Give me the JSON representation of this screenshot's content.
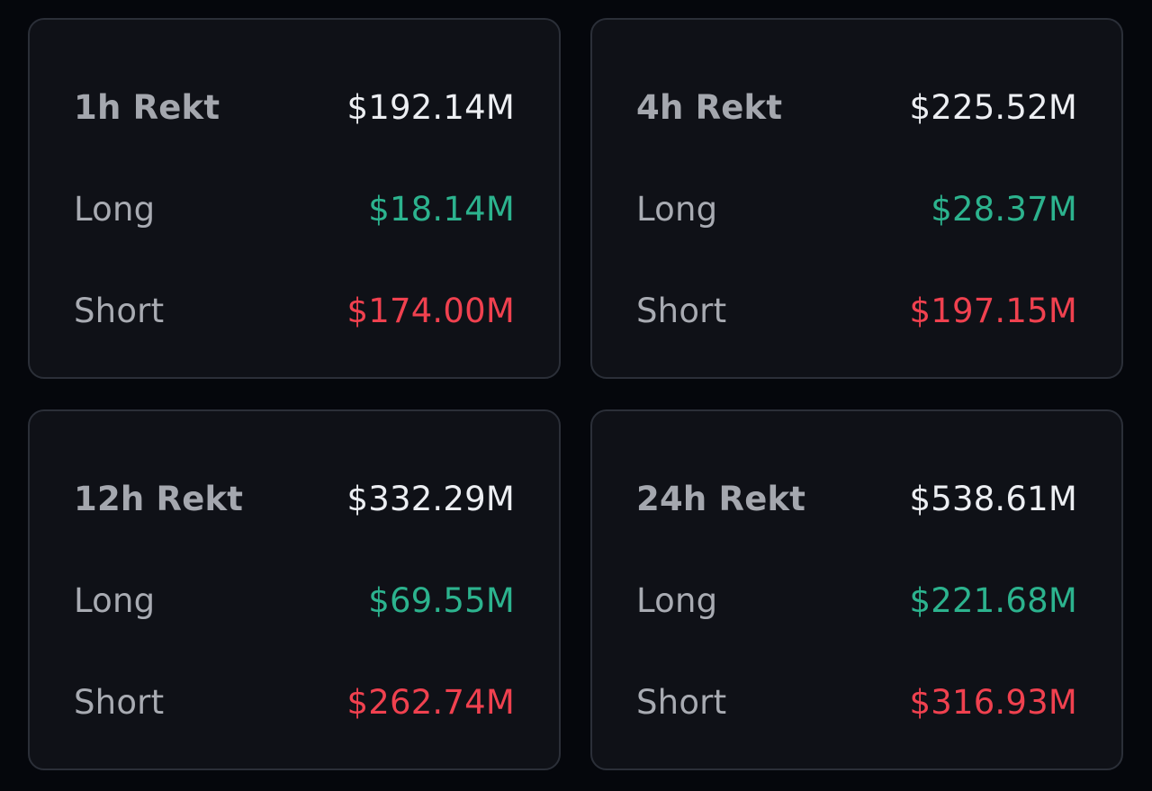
{
  "cards": [
    {
      "title": "1h Rekt",
      "total": "$192.14M",
      "long_label": "Long",
      "long_value": "$18.14M",
      "short_label": "Short",
      "short_value": "$174.00M"
    },
    {
      "title": "4h Rekt",
      "total": "$225.52M",
      "long_label": "Long",
      "long_value": "$28.37M",
      "short_label": "Short",
      "short_value": "$197.15M"
    },
    {
      "title": "12h Rekt",
      "total": "$332.29M",
      "long_label": "Long",
      "long_value": "$69.55M",
      "short_label": "Short",
      "short_value": "$262.74M"
    },
    {
      "title": "24h Rekt",
      "total": "$538.61M",
      "long_label": "Long",
      "long_value": "$221.68M",
      "short_label": "Short",
      "short_value": "$316.93M"
    }
  ],
  "colors": {
    "background": "#05070c",
    "card_background": "#0f1117",
    "card_border": "#2b2f38",
    "label": "#a8abb2",
    "total": "#eceef2",
    "long": "#2cb38e",
    "short": "#f0414f"
  }
}
